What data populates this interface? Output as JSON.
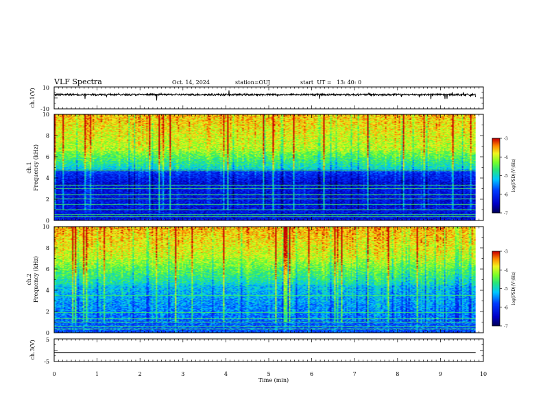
{
  "header": {
    "title": "VLF Spectra",
    "date": "Oct. 14, 2024",
    "station": "station=OUJ",
    "start": "start  UT =   13: 40: 0"
  },
  "chart_data": [
    {
      "id": "ch1-waveform",
      "type": "line",
      "ylabel": "ch.1(V)",
      "ylim": [
        -10,
        10
      ],
      "yticks": [
        "10",
        "-10"
      ],
      "xlim": [
        0,
        10
      ],
      "baseline": 3,
      "line_color": "#000000"
    },
    {
      "id": "ch1-spectrogram",
      "type": "heatmap",
      "ylabel_line1": "ch.1",
      "ylabel_line2": "Frequency (kHz)",
      "ylim": [
        0,
        10
      ],
      "yticks": [
        "0",
        "2",
        "4",
        "6",
        "8",
        "10"
      ],
      "xlim": [
        0,
        10
      ],
      "data_end_min": 9.82,
      "colorbar": {
        "label": "log(PSD)(V²/Hz)",
        "range": [
          -7,
          -3
        ],
        "ticks": [
          "-3",
          "-4",
          "-5",
          "-6",
          "-7"
        ]
      },
      "bands_khz": [
        0.3,
        0.5,
        1.0,
        1.5,
        2.0,
        2.4,
        3.0,
        3.3,
        4.7
      ]
    },
    {
      "id": "ch2-spectrogram",
      "type": "heatmap",
      "ylabel_line1": "ch.2",
      "ylabel_line2": "Frequency (kHz)",
      "ylim": [
        0,
        10
      ],
      "yticks": [
        "0",
        "2",
        "4",
        "6",
        "8",
        "10"
      ],
      "xlim": [
        0,
        10
      ],
      "data_end_min": 9.82,
      "colorbar": {
        "label": "log(PSD)(V²/Hz)",
        "range": [
          -7,
          -3
        ],
        "ticks": [
          "-3",
          "-4",
          "-5",
          "-6",
          "-7"
        ]
      },
      "bands_khz": [
        0.3,
        0.6,
        1.0,
        1.3,
        1.9,
        3.5
      ]
    },
    {
      "id": "ch3-waveform",
      "type": "line",
      "ylabel": "ch.3(V)",
      "ylim": [
        -5,
        5
      ],
      "yticks": [
        "5",
        "-5"
      ],
      "xlim": [
        0,
        10
      ],
      "baseline": -1,
      "line_color": "#000000",
      "xlabel": "Time (min)",
      "xticks": [
        "0",
        "1",
        "2",
        "3",
        "4",
        "5",
        "6",
        "7",
        "8",
        "9",
        "10"
      ]
    }
  ]
}
